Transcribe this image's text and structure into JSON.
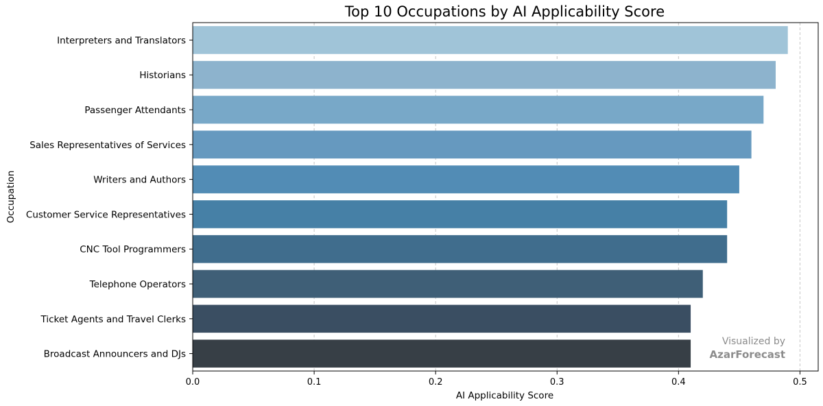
{
  "chart_data": {
    "type": "bar",
    "orientation": "horizontal",
    "title": "Top 10 Occupations by AI Applicability Score",
    "xlabel": "AI Applicability Score",
    "ylabel": "Occupation",
    "xlim": [
      0,
      0.515
    ],
    "xticks": [
      "0.0",
      "0.1",
      "0.2",
      "0.3",
      "0.4",
      "0.5"
    ],
    "grid": "x-dashed",
    "categories": [
      "Interpreters and Translators",
      "Historians",
      "Passenger Attendants",
      "Sales Representatives of Services",
      "Writers and Authors",
      "Customer Service Representatives",
      "CNC Tool Programmers",
      "Telephone Operators",
      "Ticket Agents and Travel Clerks",
      "Broadcast Announcers and DJs"
    ],
    "values": [
      0.49,
      0.48,
      0.47,
      0.46,
      0.45,
      0.44,
      0.44,
      0.42,
      0.41,
      0.41
    ],
    "colors": [
      "#a0c4d8",
      "#8db3cd",
      "#78a8c8",
      "#6699bf",
      "#528cb5",
      "#4680a6",
      "#406d8d",
      "#3f5f77",
      "#3a4e62",
      "#373f46"
    ]
  },
  "watermark": {
    "line1": "Visualized by",
    "line2": "AzarForecast"
  }
}
